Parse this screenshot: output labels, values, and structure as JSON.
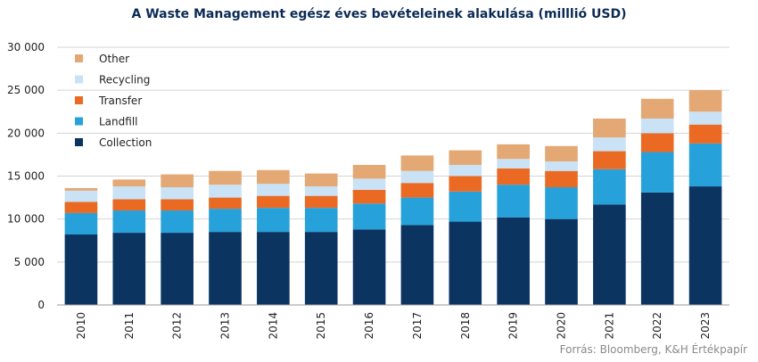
{
  "title": "A Waste Management egész éves bevételeinek alakulása (milllió USD)",
  "source": "Forrás: Bloomberg, K&H Értékpapír",
  "chart_data": {
    "type": "bar",
    "stacked": true,
    "title": "A Waste Management egész éves bevételeinek alakulása (milllió USD)",
    "xlabel": "",
    "ylabel": "",
    "ylim": [
      0,
      30000
    ],
    "yticks": [
      0,
      5000,
      10000,
      15000,
      20000,
      25000,
      30000
    ],
    "ytick_labels": [
      "0",
      "5 000",
      "10 000",
      "15 000",
      "20 000",
      "25 000",
      "30 000"
    ],
    "grid": true,
    "legend_position": "top-left",
    "categories": [
      "2010",
      "2011",
      "2012",
      "2013",
      "2014",
      "2015",
      "2016",
      "2017",
      "2018",
      "2019",
      "2020",
      "2021",
      "2022",
      "2023"
    ],
    "series": [
      {
        "name": "Collection",
        "color": "#0b3461",
        "values": [
          8200,
          8400,
          8400,
          8500,
          8500,
          8500,
          8800,
          9300,
          9700,
          10200,
          10000,
          11700,
          13100,
          13800
        ]
      },
      {
        "name": "Landfill",
        "color": "#27a1d9",
        "values": [
          2500,
          2600,
          2600,
          2700,
          2800,
          2800,
          3000,
          3200,
          3500,
          3800,
          3700,
          4100,
          4700,
          5000
        ]
      },
      {
        "name": "Transfer",
        "color": "#ea6a23",
        "values": [
          1300,
          1300,
          1300,
          1300,
          1400,
          1400,
          1600,
          1700,
          1800,
          1900,
          1900,
          2100,
          2200,
          2200
        ]
      },
      {
        "name": "Recycling",
        "color": "#c9e2f6",
        "values": [
          1300,
          1500,
          1400,
          1500,
          1400,
          1100,
          1300,
          1400,
          1300,
          1100,
          1100,
          1600,
          1700,
          1500
        ]
      },
      {
        "name": "Other",
        "color": "#e3a874",
        "values": [
          300,
          800,
          1500,
          1600,
          1600,
          1500,
          1600,
          1800,
          1700,
          1700,
          1800,
          2200,
          2300,
          2500
        ]
      }
    ]
  }
}
